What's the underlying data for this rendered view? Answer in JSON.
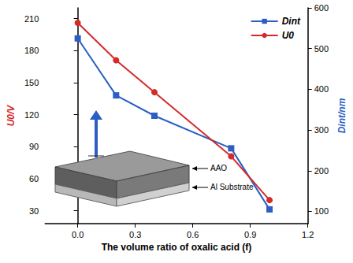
{
  "chart_data": {
    "type": "line",
    "xlabel": "The volume ratio of oxalic acid (f)",
    "ylabel": "U0/V",
    "y2label": "Dint/nm",
    "x": [
      0,
      0.2,
      0.4,
      0.8,
      1.0
    ],
    "series": [
      {
        "name": "Dint",
        "color": "#2b5fc4",
        "marker": "square",
        "axis": "y2",
        "values": [
          525,
          385,
          335,
          255,
          105
        ]
      },
      {
        "name": "U0",
        "color": "#d42a2a",
        "marker": "circle",
        "values": [
          206,
          171,
          141,
          81,
          40
        ]
      }
    ],
    "xlim": [
      -0.17,
      1.2
    ],
    "xticks": [
      {
        "value": 0,
        "label": "0.0"
      },
      0.3,
      0.6,
      0.9,
      1.2
    ],
    "ylim": [
      18,
      220
    ],
    "yticks": [
      30,
      60,
      90,
      120,
      150,
      180,
      210
    ],
    "y2lim": [
      70,
      600
    ],
    "y2ticks": [
      100,
      200,
      300,
      400,
      500,
      600
    ],
    "grid": false,
    "legend": "upper right",
    "annotations": [
      "AAO",
      "Al Substrate"
    ]
  }
}
